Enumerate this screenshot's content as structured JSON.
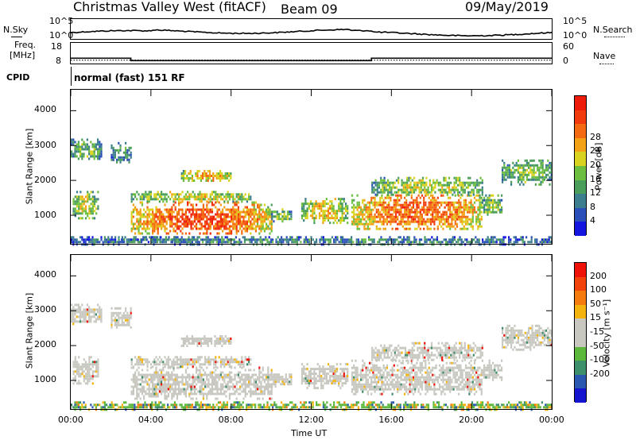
{
  "header": {
    "station": "Christmas Valley West (fitACF)",
    "beam": "Beam 09",
    "date": "09/May/2019"
  },
  "top_panels": {
    "nsky_label": "N.Sky",
    "nsearch_label": "N.Search",
    "noise_ticks_left": [
      "10^5",
      "10^0"
    ],
    "noise_ticks_right": [
      "10^5",
      "10^0"
    ],
    "freq_label_line1": "Freq.",
    "freq_label_line2": "[MHz]",
    "freq_ticks": [
      "18",
      "8"
    ],
    "nave_label": "Nave",
    "nave_ticks": [
      "60",
      "0"
    ],
    "cpid_label": "CPID",
    "cpid_value": "normal (fast) 151 RF"
  },
  "x_axis": {
    "label": "Time UT",
    "ticks": [
      "00:00",
      "04:00",
      "08:00",
      "12:00",
      "16:00",
      "20:00",
      "00:00"
    ]
  },
  "chart_data": [
    {
      "type": "heatmap",
      "title": "Power",
      "ylabel": "Slant Range [km]",
      "xlabel": "Time UT",
      "y_ticks": [
        "1000",
        "2000",
        "3000",
        "4000"
      ],
      "xlim_hours": [
        0,
        24
      ],
      "ylim_km": [
        180,
        4600
      ],
      "colorbar": {
        "label": "Power [dB]",
        "ticks": [
          "4",
          "8",
          "12",
          "16",
          "20",
          "24",
          "28"
        ],
        "colors": [
          "#1515e0",
          "#2a4fb8",
          "#3c7e8e",
          "#4a9e5a",
          "#6cbf3e",
          "#d9d21e",
          "#f2a214",
          "#f46a10",
          "#f23b0c",
          "#ee1a0a"
        ]
      },
      "regions": [
        {
          "t0": 0.0,
          "t1": 1.5,
          "r0": 2600,
          "r1": 3200,
          "level": 0.45
        },
        {
          "t0": 0.1,
          "t1": 1.4,
          "r0": 900,
          "r1": 1700,
          "level": 0.55
        },
        {
          "t0": 2.0,
          "t1": 3.0,
          "r0": 2500,
          "r1": 3100,
          "level": 0.3
        },
        {
          "t0": 2.5,
          "t1": 5.5,
          "r0": 250,
          "r1": 400,
          "level": 0.35
        },
        {
          "t0": 3.0,
          "t1": 10.0,
          "r0": 500,
          "r1": 1400,
          "level": 0.9
        },
        {
          "t0": 3.0,
          "t1": 9.0,
          "r0": 1400,
          "r1": 1700,
          "level": 0.6
        },
        {
          "t0": 5.5,
          "t1": 8.0,
          "r0": 2000,
          "r1": 2300,
          "level": 0.7
        },
        {
          "t0": 10.0,
          "t1": 11.0,
          "r0": 800,
          "r1": 1200,
          "level": 0.5
        },
        {
          "t0": 11.5,
          "t1": 13.8,
          "r0": 800,
          "r1": 1500,
          "level": 0.65
        },
        {
          "t0": 14.0,
          "t1": 20.5,
          "r0": 600,
          "r1": 1600,
          "level": 0.85
        },
        {
          "t0": 15.0,
          "t1": 20.5,
          "r0": 1600,
          "r1": 2100,
          "level": 0.55
        },
        {
          "t0": 20.5,
          "t1": 21.5,
          "r0": 1000,
          "r1": 1600,
          "level": 0.5
        },
        {
          "t0": 21.5,
          "t1": 24.0,
          "r0": 1900,
          "r1": 2600,
          "level": 0.45
        },
        {
          "t0": 0.0,
          "t1": 24.0,
          "r0": 180,
          "r1": 400,
          "level": 0.3
        }
      ]
    },
    {
      "type": "heatmap",
      "title": "Velocity",
      "ylabel": "Slant Range [km]",
      "xlabel": "Time UT",
      "y_ticks": [
        "1000",
        "2000",
        "3000",
        "4000"
      ],
      "xlim_hours": [
        0,
        24
      ],
      "ylim_km": [
        180,
        4600
      ],
      "colorbar": {
        "label": "Velocity [m s⁻¹]",
        "ticks": [
          "200",
          "100",
          "50",
          "15",
          "-15",
          "-50",
          "-100",
          "-200"
        ],
        "colors": [
          "#1515d0",
          "#2a58b0",
          "#3d8e6a",
          "#5cb83c",
          "#c8c8c0",
          "#c8c8c0",
          "#f5b30e",
          "#f57b0c",
          "#f2430a",
          "#ee1208"
        ]
      },
      "regions": [
        {
          "t0": 0.0,
          "t1": 1.5,
          "r0": 2600,
          "r1": 3200,
          "level": 0.5
        },
        {
          "t0": 0.1,
          "t1": 1.4,
          "r0": 900,
          "r1": 1700,
          "level": 0.5
        },
        {
          "t0": 2.0,
          "t1": 3.0,
          "r0": 2500,
          "r1": 3100,
          "level": 0.5
        },
        {
          "t0": 3.0,
          "t1": 10.0,
          "r0": 500,
          "r1": 1400,
          "level": 0.5
        },
        {
          "t0": 3.0,
          "t1": 9.0,
          "r0": 1400,
          "r1": 1700,
          "level": 0.5
        },
        {
          "t0": 5.5,
          "t1": 8.0,
          "r0": 2000,
          "r1": 2300,
          "level": 0.5
        },
        {
          "t0": 10.0,
          "t1": 11.0,
          "r0": 800,
          "r1": 1200,
          "level": 0.5
        },
        {
          "t0": 11.5,
          "t1": 13.8,
          "r0": 800,
          "r1": 1500,
          "level": 0.5
        },
        {
          "t0": 14.0,
          "t1": 20.5,
          "r0": 600,
          "r1": 1600,
          "level": 0.5
        },
        {
          "t0": 15.0,
          "t1": 20.5,
          "r0": 1600,
          "r1": 2100,
          "level": 0.5
        },
        {
          "t0": 20.5,
          "t1": 21.5,
          "r0": 1000,
          "r1": 1600,
          "level": 0.5
        },
        {
          "t0": 21.5,
          "t1": 24.0,
          "r0": 1900,
          "r1": 2600,
          "level": 0.5
        },
        {
          "t0": 0.0,
          "t1": 24.0,
          "r0": 180,
          "r1": 400,
          "level": 0.7
        }
      ]
    }
  ],
  "noise_series": {
    "freq_mhz_steps": [
      {
        "t0": 0,
        "t1": 3,
        "value": 10.6
      },
      {
        "t0": 3,
        "t1": 15,
        "value": 9.4
      },
      {
        "t0": 15,
        "t1": 24,
        "value": 10.6
      }
    ],
    "nave_level": 10
  }
}
